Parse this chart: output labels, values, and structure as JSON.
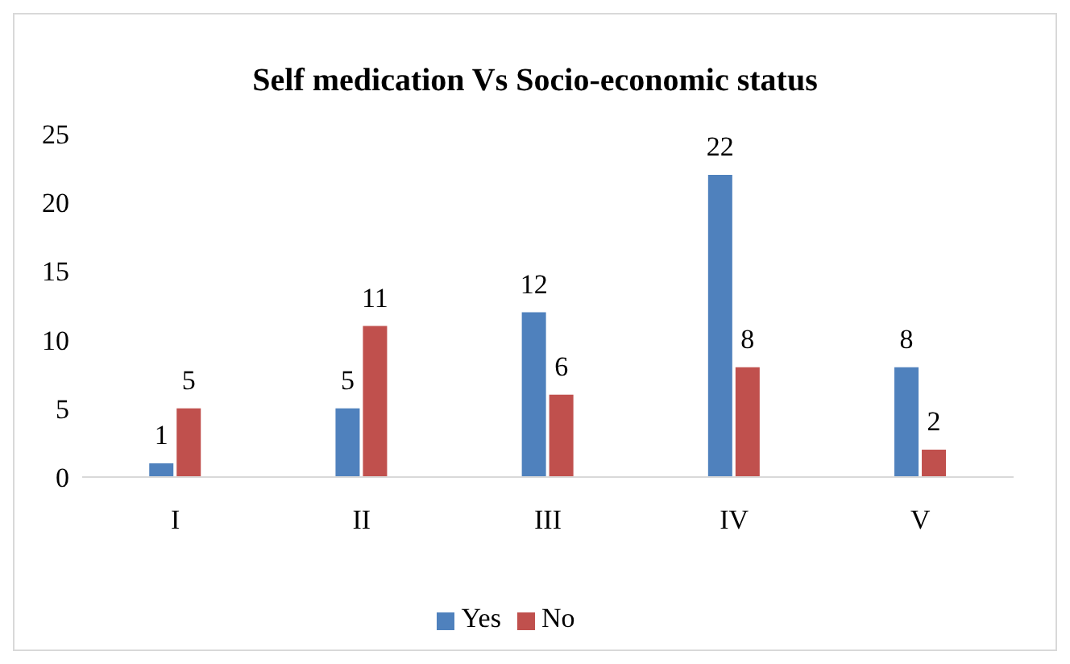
{
  "chart_data": {
    "type": "bar",
    "title": "Self medication Vs Socio-economic status",
    "categories": [
      "I",
      "II",
      "III",
      "IV",
      "V"
    ],
    "series": [
      {
        "name": "Yes",
        "color": "#4f81bd",
        "values": [
          1,
          5,
          12,
          22,
          8
        ]
      },
      {
        "name": "No",
        "color": "#c0504d",
        "values": [
          5,
          11,
          6,
          8,
          2
        ]
      }
    ],
    "ylim": [
      0,
      25
    ],
    "yticks": [
      0,
      5,
      10,
      15,
      20,
      25
    ],
    "data_labels": true,
    "legend": "bottom"
  }
}
